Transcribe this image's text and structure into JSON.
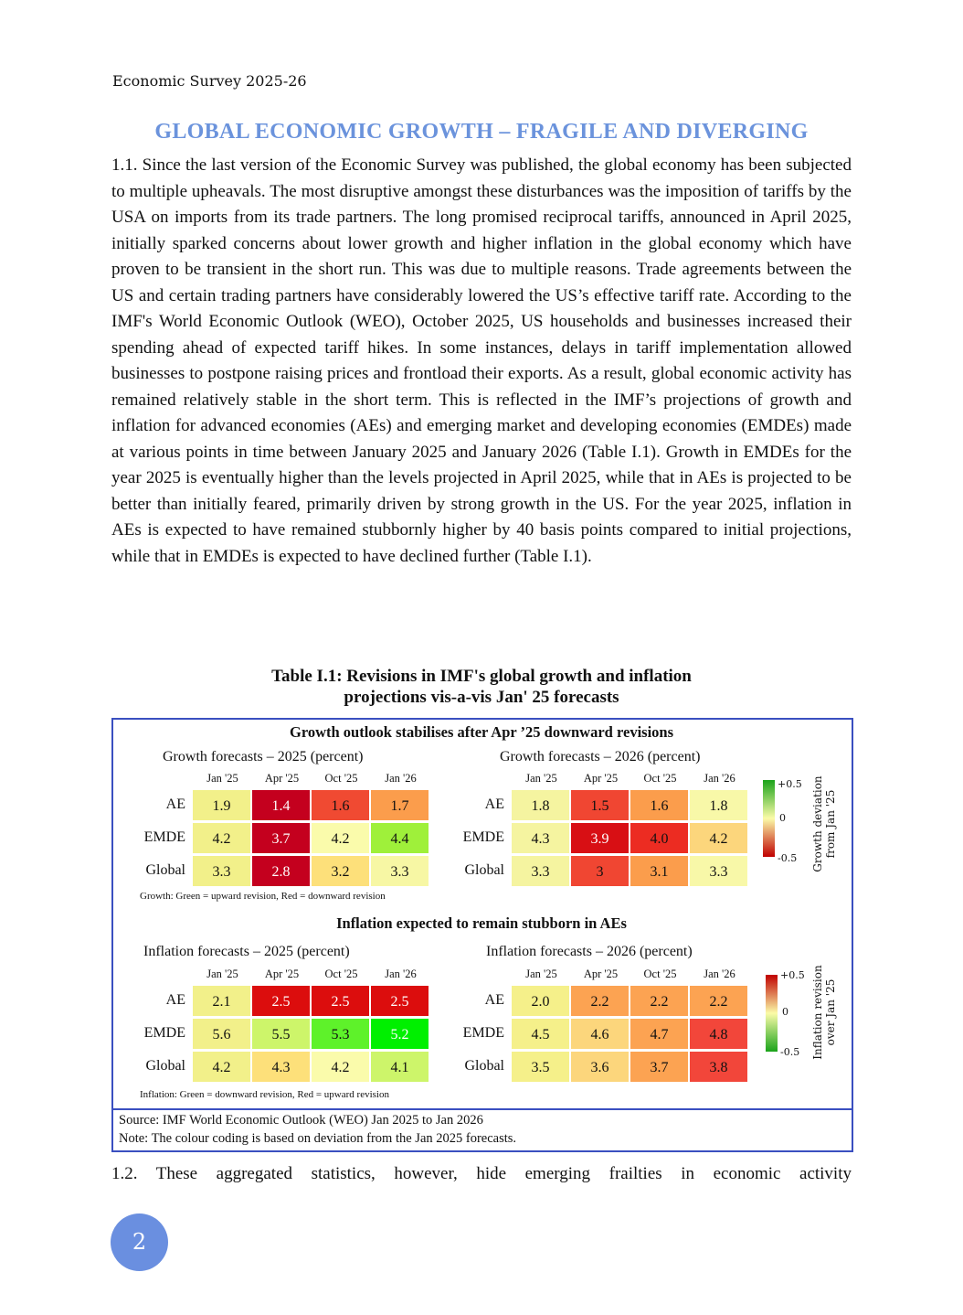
{
  "running_header": "Economic Survey 2025-26",
  "heading": "GLOBAL ECONOMIC GROWTH – FRAGILE AND DIVERGING",
  "para1": "1.1.   Since the last version of the Economic Survey was published, the global economy has been subjected to multiple upheavals. The most disruptive amongst these disturbances was the imposition of tariffs by the USA on imports from its trade partners. The long promised reciprocal tariffs, announced in April 2025, initially sparked concerns about lower growth and higher inflation in the global economy which have proven to be transient in the short run. This was due to multiple reasons. Trade agreements between the US and certain trading partners have considerably lowered the US’s effective tariff rate. According to the IMF's World Economic Outlook (WEO), October 2025, US households and businesses increased their spending ahead of expected tariff hikes. In some instances, delays in tariff implementation allowed businesses to postpone raising prices and frontload their exports. As a result, global economic activity has remained relatively stable in the short term. This is reflected in the IMF’s projections of growth and inflation for advanced economies (AEs) and emerging market and developing economies (EMDEs) made at various points in time between January 2025 and January 2026 (Table I.1). Growth in EMDEs for the year 2025 is eventually higher than the levels projected in April 2025, while that in AEs is projected to be better than initially feared, primarily driven by strong growth in the US. For the year 2025, inflation in AEs is expected to have remained stubbornly higher by 40 basis points compared to initial projections, while that in EMDEs is expected to have declined further (Table I.1).",
  "table_title_1": "Table I.1: Revisions in IMF's global growth and inflation",
  "table_title_2": "projections vis-a-vis Jan' 25 forecasts",
  "growth_subtitle": "Growth outlook stabilises after Apr ’25 downward revisions",
  "inflation_subtitle": "Inflation expected to remain stubborn in AEs",
  "columns": [
    "Jan '25",
    "Apr '25",
    "Oct '25",
    "Jan '26"
  ],
  "rows": [
    "AE",
    "EMDE",
    "Global"
  ],
  "heatmaps": [
    {
      "title": "Growth forecasts – 2025 (percent)",
      "values": [
        [
          "1.9",
          "1.4",
          "1.6",
          "1.7"
        ],
        [
          "4.2",
          "3.7",
          "4.2",
          "4.4"
        ],
        [
          "3.3",
          "2.8",
          "3.2",
          "3.3"
        ]
      ],
      "colors": [
        [
          "#f2f08a",
          "#c4001e",
          "#f04a32",
          "#fb9d4c"
        ],
        [
          "#f2f08a",
          "#c4001e",
          "#fafbab",
          "#9ff03a"
        ],
        [
          "#f2f08a",
          "#c4001e",
          "#fde07a",
          "#f7f7a4"
        ]
      ],
      "text_colors": [
        [
          "#111",
          "#fff",
          "#111",
          "#111"
        ],
        [
          "#111",
          "#fff",
          "#111",
          "#111"
        ],
        [
          "#111",
          "#fff",
          "#111",
          "#111"
        ]
      ]
    },
    {
      "title": "Growth forecasts – 2026 (percent)",
      "values": [
        [
          "1.8",
          "1.5",
          "1.6",
          "1.8"
        ],
        [
          "4.3",
          "3.9",
          "4.0",
          "4.2"
        ],
        [
          "3.3",
          "3",
          "3.1",
          "3.3"
        ]
      ],
      "colors": [
        [
          "#f5f4a0",
          "#f04632",
          "#fb9d4c",
          "#f8f8a8"
        ],
        [
          "#f5f4a0",
          "#d80f14",
          "#ec2c22",
          "#fcd67c"
        ],
        [
          "#f5f4a0",
          "#f04632",
          "#fb9d4c",
          "#f8f8a8"
        ]
      ],
      "text_colors": [
        [
          "#111",
          "#111",
          "#111",
          "#111"
        ],
        [
          "#111",
          "#fff",
          "#111",
          "#111"
        ],
        [
          "#111",
          "#111",
          "#111",
          "#111"
        ]
      ]
    },
    {
      "title": "Inflation forecasts – 2025 (percent)",
      "values": [
        [
          "2.1",
          "2.5",
          "2.5",
          "2.5"
        ],
        [
          "5.6",
          "5.5",
          "5.3",
          "5.2"
        ],
        [
          "4.2",
          "4.3",
          "4.2",
          "4.1"
        ]
      ],
      "colors": [
        [
          "#f2f08a",
          "#dc0d0d",
          "#dc0d0d",
          "#dc0d0d"
        ],
        [
          "#f2f08a",
          "#cdf56a",
          "#5ef22a",
          "#00f000"
        ],
        [
          "#f2f08a",
          "#fde07a",
          "#fafbab",
          "#cdf56a"
        ]
      ],
      "text_colors": [
        [
          "#111",
          "#fff",
          "#fff",
          "#fff"
        ],
        [
          "#111",
          "#111",
          "#111",
          "#fff"
        ],
        [
          "#111",
          "#111",
          "#111",
          "#111"
        ]
      ]
    },
    {
      "title": "Inflation forecasts – 2026 (percent)",
      "values": [
        [
          "2.0",
          "2.2",
          "2.2",
          "2.2"
        ],
        [
          "4.5",
          "4.6",
          "4.7",
          "4.8"
        ],
        [
          "3.5",
          "3.6",
          "3.7",
          "3.8"
        ]
      ],
      "colors": [
        [
          "#f5f08a",
          "#fca352",
          "#fca352",
          "#fca352"
        ],
        [
          "#f5f08a",
          "#fcd67c",
          "#fca352",
          "#f2463a"
        ],
        [
          "#f5f08a",
          "#fcd67c",
          "#fca352",
          "#f2463a"
        ]
      ],
      "text_colors": [
        [
          "#111",
          "#111",
          "#111",
          "#111"
        ],
        [
          "#111",
          "#111",
          "#111",
          "#111"
        ],
        [
          "#111",
          "#111",
          "#111",
          "#111"
        ]
      ]
    }
  ],
  "growth_note": "Growth: Green = upward revision, Red = downward revision",
  "inflation_note": "Inflation: Green = downward revision, Red = upward revision",
  "growth_colorbar": {
    "max": "+0.5",
    "mid": "0",
    "min": "-0.5",
    "title1": "Growth deviation",
    "title2": "from Jan '25"
  },
  "inflation_colorbar": {
    "max": "+0.5",
    "mid": "0",
    "min": "-0.5",
    "title1": "Inflation revision",
    "title2": "over Jan '25"
  },
  "source": "Source: IMF World Economic Outlook (WEO) Jan 2025 to Jan 2026",
  "note": "Note: The colour coding is based on deviation from the Jan 2025 forecasts.",
  "para2": "1.2.  These aggregated statistics, however, hide emerging frailties in economic activity",
  "page_number": "2"
}
